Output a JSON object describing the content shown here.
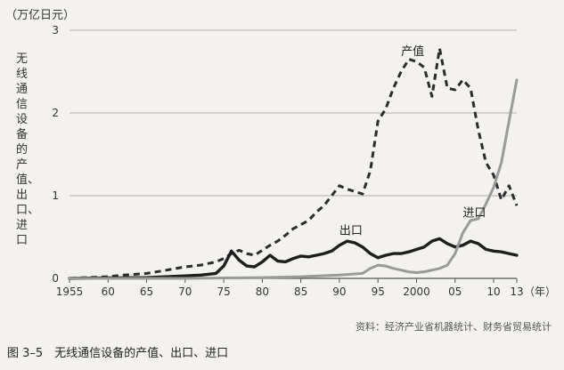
{
  "figure": {
    "caption": "图 3–5　无线通信设备的产值、出口、进口",
    "source": "资料：经济产业省机器统计、财务省贸易统计"
  },
  "chart_data": {
    "type": "line",
    "unit_label": "（万亿日元）",
    "ylabel": "无线通信设备的产值、出口、进口",
    "xlabel_unit": "（年）",
    "ylim": [
      0,
      3
    ],
    "xlim": [
      1955,
      2013
    ],
    "yticks": [
      0,
      1,
      2,
      3
    ],
    "xtick_labels": [
      {
        "x": 1955,
        "label": "1955"
      },
      {
        "x": 1960,
        "label": "60"
      },
      {
        "x": 1965,
        "label": "65"
      },
      {
        "x": 1970,
        "label": "70"
      },
      {
        "x": 1975,
        "label": "75"
      },
      {
        "x": 1980,
        "label": "80"
      },
      {
        "x": 1985,
        "label": "85"
      },
      {
        "x": 1990,
        "label": "90"
      },
      {
        "x": 1995,
        "label": "95"
      },
      {
        "x": 2000,
        "label": "2000"
      },
      {
        "x": 2005,
        "label": "05"
      },
      {
        "x": 2010,
        "label": "10"
      },
      {
        "x": 2013,
        "label": "13"
      }
    ],
    "grid": "horizontal",
    "series": [
      {
        "name": "产值",
        "style": "dashed",
        "color": "#2b2b2b",
        "label_at": [
          1998.0,
          2.7
        ],
        "points": [
          [
            1955,
            0.0
          ],
          [
            1957,
            0.01
          ],
          [
            1960,
            0.02
          ],
          [
            1962,
            0.04
          ],
          [
            1965,
            0.06
          ],
          [
            1967,
            0.09
          ],
          [
            1970,
            0.14
          ],
          [
            1972,
            0.16
          ],
          [
            1974,
            0.2
          ],
          [
            1975,
            0.24
          ],
          [
            1976,
            0.3
          ],
          [
            1977,
            0.34
          ],
          [
            1978,
            0.3
          ],
          [
            1979,
            0.28
          ],
          [
            1980,
            0.34
          ],
          [
            1981,
            0.4
          ],
          [
            1982,
            0.45
          ],
          [
            1983,
            0.52
          ],
          [
            1984,
            0.6
          ],
          [
            1985,
            0.65
          ],
          [
            1986,
            0.7
          ],
          [
            1987,
            0.8
          ],
          [
            1988,
            0.88
          ],
          [
            1989,
            1.0
          ],
          [
            1990,
            1.12
          ],
          [
            1991,
            1.08
          ],
          [
            1992,
            1.05
          ],
          [
            1993,
            1.02
          ],
          [
            1994,
            1.3
          ],
          [
            1995,
            1.9
          ],
          [
            1996,
            2.05
          ],
          [
            1997,
            2.3
          ],
          [
            1998,
            2.5
          ],
          [
            1999,
            2.65
          ],
          [
            2000,
            2.62
          ],
          [
            2001,
            2.55
          ],
          [
            2002,
            2.2
          ],
          [
            2003,
            2.78
          ],
          [
            2004,
            2.3
          ],
          [
            2005,
            2.28
          ],
          [
            2006,
            2.4
          ],
          [
            2007,
            2.3
          ],
          [
            2008,
            1.8
          ],
          [
            2009,
            1.4
          ],
          [
            2010,
            1.25
          ],
          [
            2011,
            0.95
          ],
          [
            2012,
            1.12
          ],
          [
            2013,
            0.88
          ]
        ]
      },
      {
        "name": "出口",
        "style": "solid",
        "color": "#1e1e1e",
        "label_at": [
          1990.0,
          0.53
        ],
        "points": [
          [
            1955,
            0.0
          ],
          [
            1960,
            0.005
          ],
          [
            1965,
            0.01
          ],
          [
            1970,
            0.03
          ],
          [
            1972,
            0.04
          ],
          [
            1974,
            0.06
          ],
          [
            1975,
            0.15
          ],
          [
            1976,
            0.33
          ],
          [
            1977,
            0.22
          ],
          [
            1978,
            0.15
          ],
          [
            1979,
            0.14
          ],
          [
            1980,
            0.2
          ],
          [
            1981,
            0.28
          ],
          [
            1982,
            0.21
          ],
          [
            1983,
            0.2
          ],
          [
            1984,
            0.24
          ],
          [
            1985,
            0.27
          ],
          [
            1986,
            0.26
          ],
          [
            1987,
            0.28
          ],
          [
            1988,
            0.3
          ],
          [
            1989,
            0.33
          ],
          [
            1990,
            0.4
          ],
          [
            1991,
            0.45
          ],
          [
            1992,
            0.43
          ],
          [
            1993,
            0.38
          ],
          [
            1994,
            0.3
          ],
          [
            1995,
            0.25
          ],
          [
            1996,
            0.28
          ],
          [
            1997,
            0.3
          ],
          [
            1998,
            0.3
          ],
          [
            1999,
            0.32
          ],
          [
            2000,
            0.35
          ],
          [
            2001,
            0.38
          ],
          [
            2002,
            0.45
          ],
          [
            2003,
            0.48
          ],
          [
            2004,
            0.42
          ],
          [
            2005,
            0.38
          ],
          [
            2006,
            0.4
          ],
          [
            2007,
            0.45
          ],
          [
            2008,
            0.42
          ],
          [
            2009,
            0.35
          ],
          [
            2010,
            0.33
          ],
          [
            2011,
            0.32
          ],
          [
            2012,
            0.3
          ],
          [
            2013,
            0.28
          ]
        ]
      },
      {
        "name": "进口",
        "style": "solid",
        "color": "#9a9a9a",
        "label_at": [
          2006.0,
          0.75
        ],
        "points": [
          [
            1955,
            0.0
          ],
          [
            1970,
            0.0
          ],
          [
            1975,
            0.005
          ],
          [
            1980,
            0.01
          ],
          [
            1985,
            0.02
          ],
          [
            1990,
            0.04
          ],
          [
            1993,
            0.06
          ],
          [
            1994,
            0.12
          ],
          [
            1995,
            0.16
          ],
          [
            1996,
            0.15
          ],
          [
            1997,
            0.12
          ],
          [
            1998,
            0.1
          ],
          [
            1999,
            0.08
          ],
          [
            2000,
            0.07
          ],
          [
            2001,
            0.08
          ],
          [
            2002,
            0.1
          ],
          [
            2003,
            0.12
          ],
          [
            2004,
            0.16
          ],
          [
            2005,
            0.3
          ],
          [
            2006,
            0.55
          ],
          [
            2007,
            0.7
          ],
          [
            2008,
            0.72
          ],
          [
            2009,
            0.9
          ],
          [
            2010,
            1.1
          ],
          [
            2011,
            1.4
          ],
          [
            2012,
            1.9
          ],
          [
            2013,
            2.4
          ]
        ]
      }
    ]
  }
}
